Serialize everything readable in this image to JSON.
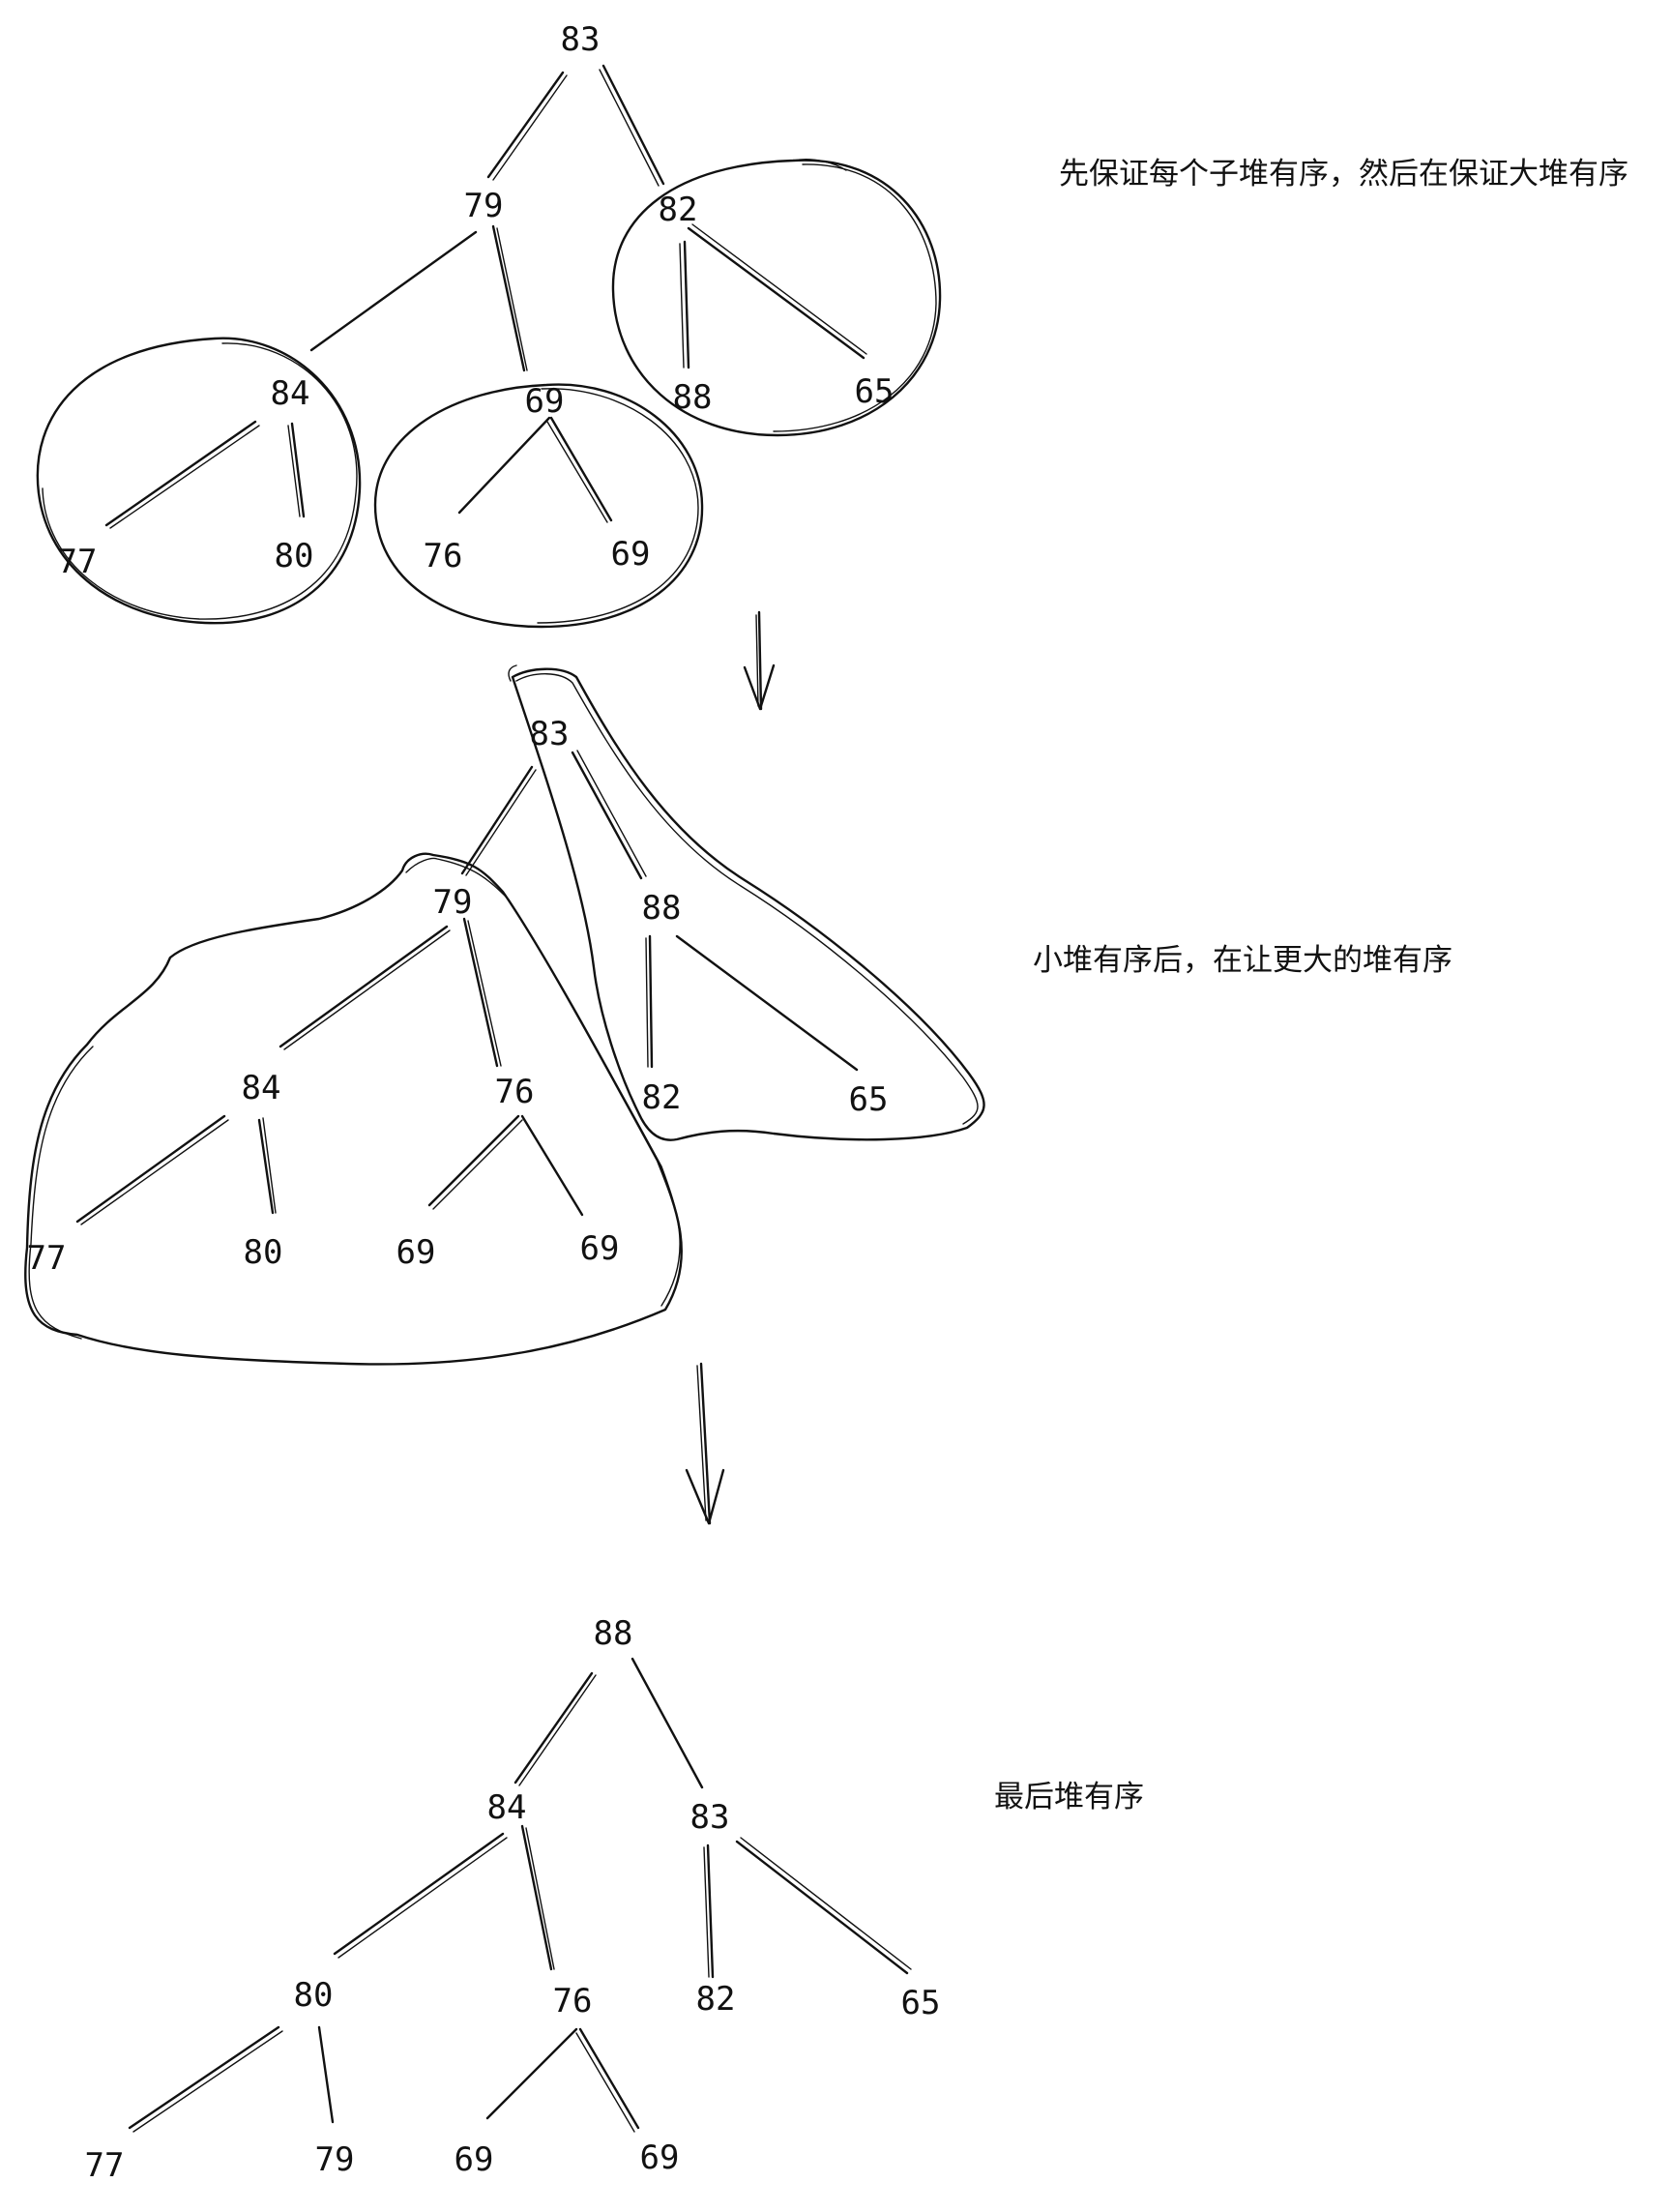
{
  "stage1": {
    "note": "先保证每个子堆有序，然后在保证大堆有序",
    "nodes": [
      "83",
      "79",
      "82",
      "84",
      "69",
      "88",
      "65",
      "77",
      "80",
      "76",
      "69"
    ]
  },
  "stage2": {
    "note": "小堆有序后，在让更大的堆有序",
    "nodes": [
      "83",
      "79",
      "88",
      "84",
      "76",
      "82",
      "65",
      "77",
      "80",
      "69",
      "69"
    ]
  },
  "stage3": {
    "note": "最后堆有序",
    "nodes": [
      "88",
      "84",
      "83",
      "80",
      "76",
      "82",
      "65",
      "77",
      "79",
      "69",
      "69"
    ]
  }
}
